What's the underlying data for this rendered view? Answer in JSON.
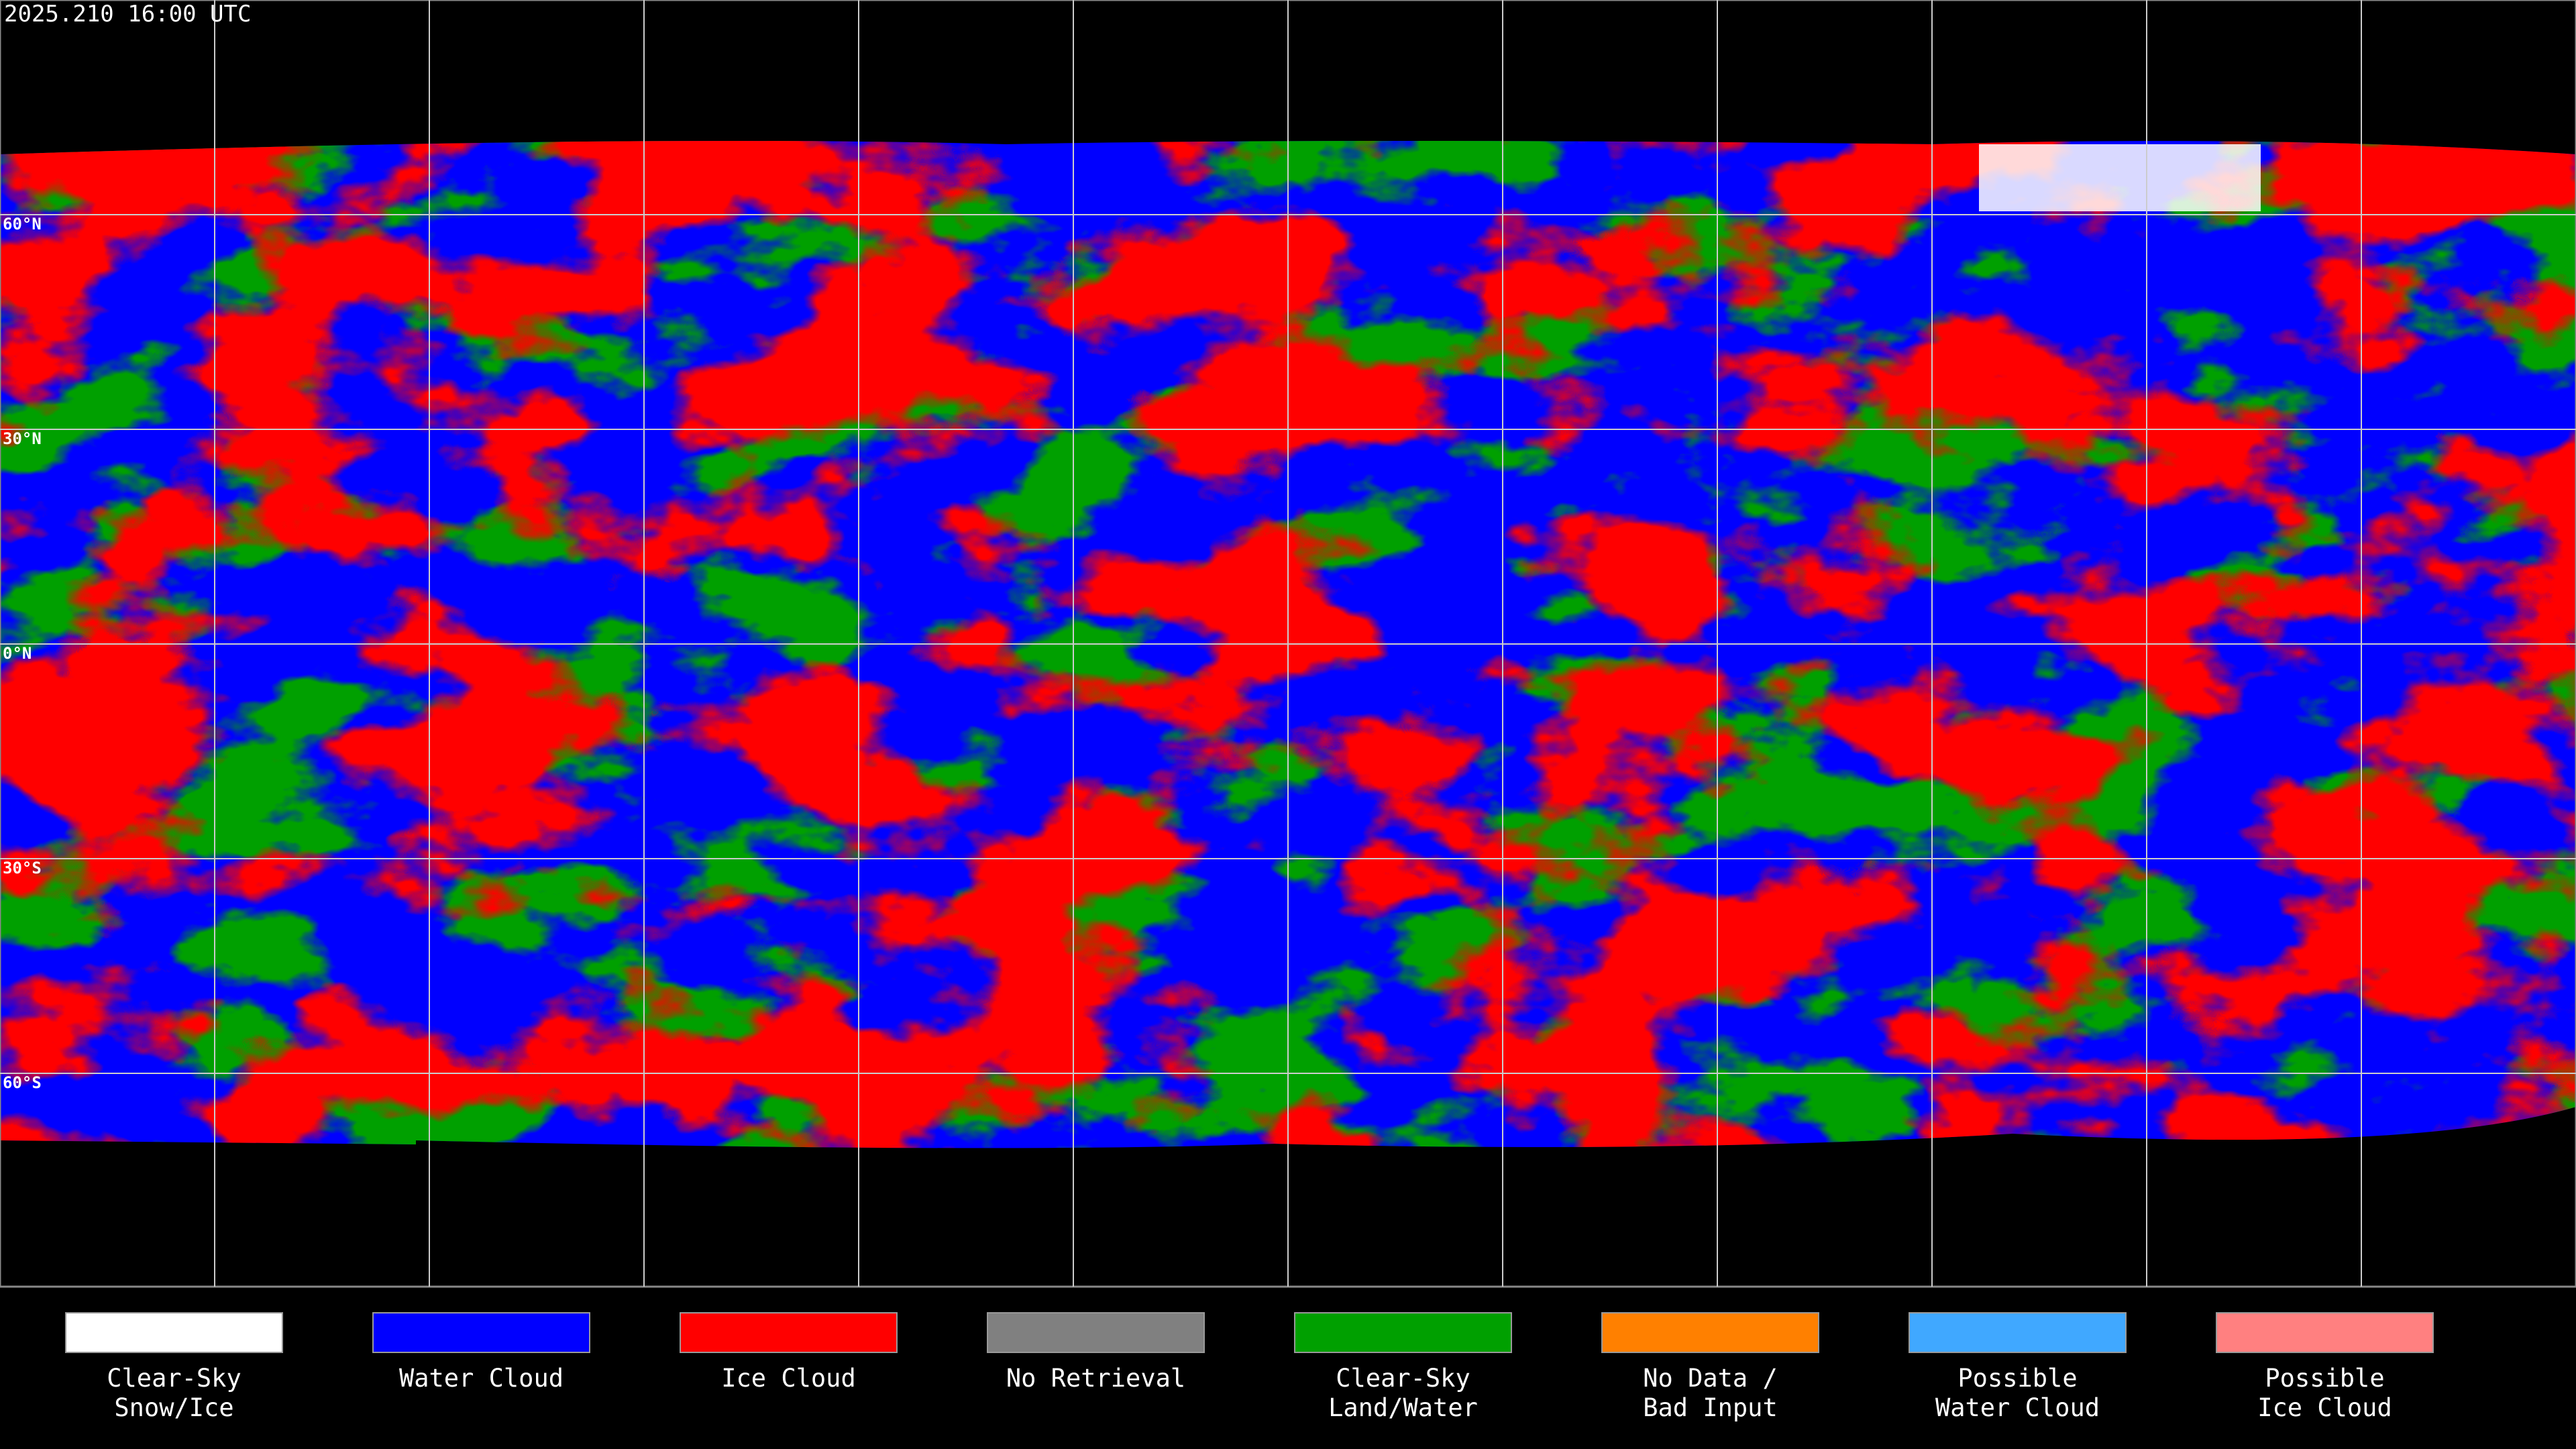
{
  "title": "2025.210 16:00 UTC",
  "latitude_labels": [
    "60°N",
    "30°N",
    "0°N",
    "30°S",
    "60°S"
  ],
  "legend": [
    {
      "label": [
        "Clear-Sky",
        "Snow/Ice"
      ],
      "color": "#ffffff"
    },
    {
      "label": [
        "Water Cloud"
      ],
      "color": "#0000ff"
    },
    {
      "label": [
        "Ice Cloud"
      ],
      "color": "#ff0000"
    },
    {
      "label": [
        "No Retrieval"
      ],
      "color": "#808080"
    },
    {
      "label": [
        "Clear-Sky",
        "Land/Water"
      ],
      "color": "#00a000"
    },
    {
      "label": [
        "No Data /",
        "Bad Input"
      ],
      "color": "#ff8000"
    },
    {
      "label": [
        "Possible",
        "Water Cloud"
      ],
      "color": "#40a8ff"
    },
    {
      "label": [
        "Possible",
        "Ice Cloud"
      ],
      "color": "#ff8080"
    }
  ]
}
